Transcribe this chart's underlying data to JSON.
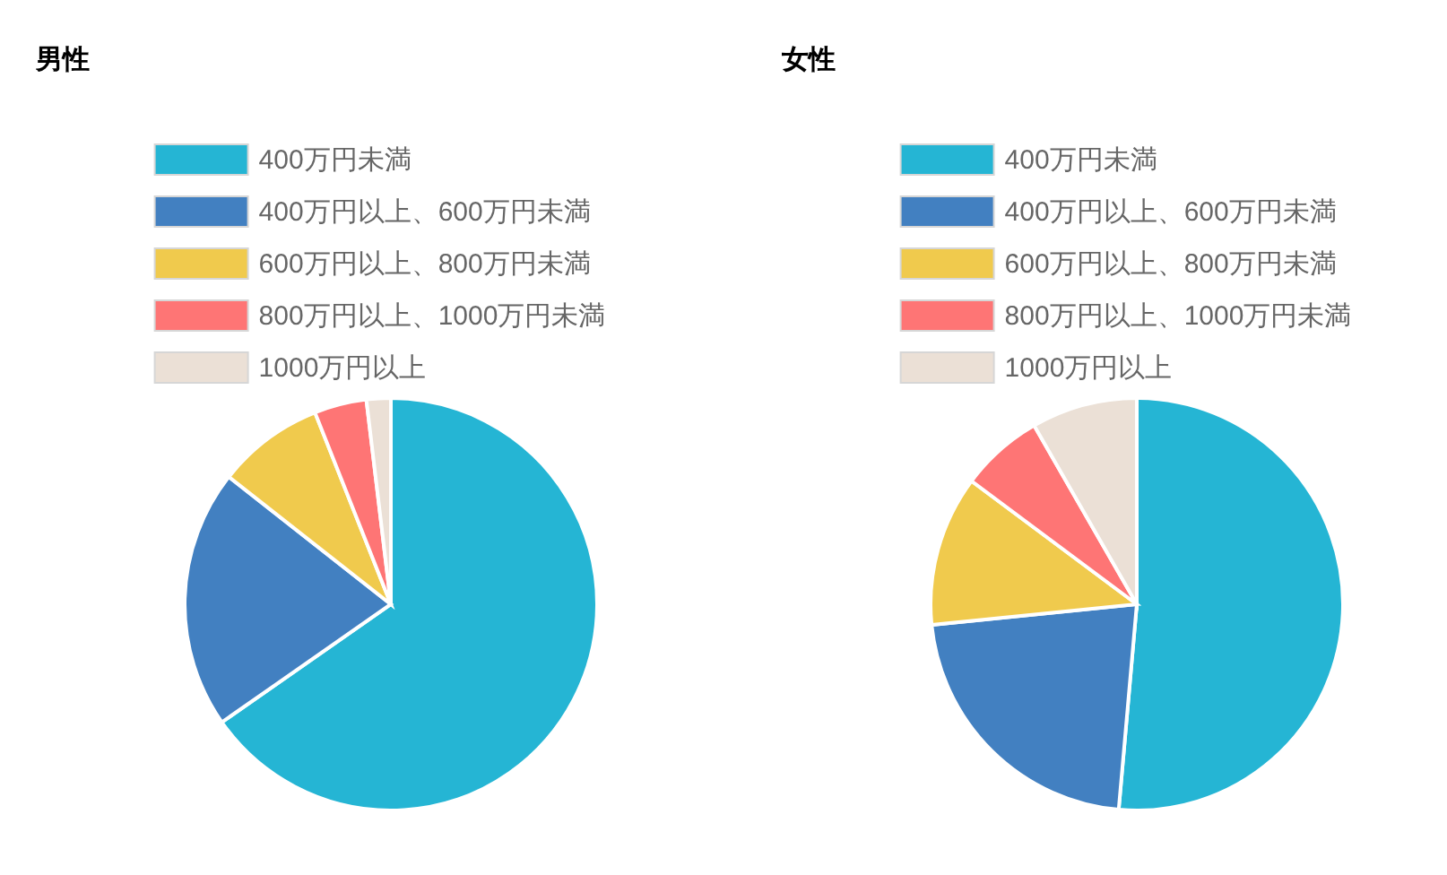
{
  "chart_data": [
    {
      "type": "pie",
      "title": "男性",
      "categories": [
        "400万円未満",
        "400万円以上、600万円未満",
        "600万円以上、800万円未満",
        "800万円以上、1000万円未満",
        "1000万円以上"
      ],
      "values": [
        65.3,
        20.3,
        8.4,
        4.1,
        1.9
      ],
      "colors": [
        "#25b5d4",
        "#4280c1",
        "#f0ca4d",
        "#fe7575",
        "#ebe0d6"
      ],
      "legend": "top"
    },
    {
      "type": "pie",
      "title": "女性",
      "categories": [
        "400万円未満",
        "400万円以上、600万円未満",
        "600万円以上、800万円未満",
        "800万円以上、1000万円未満",
        "1000万円以上"
      ],
      "values": [
        51.4,
        22.0,
        11.8,
        6.5,
        8.3
      ],
      "colors": [
        "#25b5d4",
        "#4280c1",
        "#f0ca4d",
        "#fe7575",
        "#ebe0d6"
      ],
      "legend": "top"
    }
  ]
}
